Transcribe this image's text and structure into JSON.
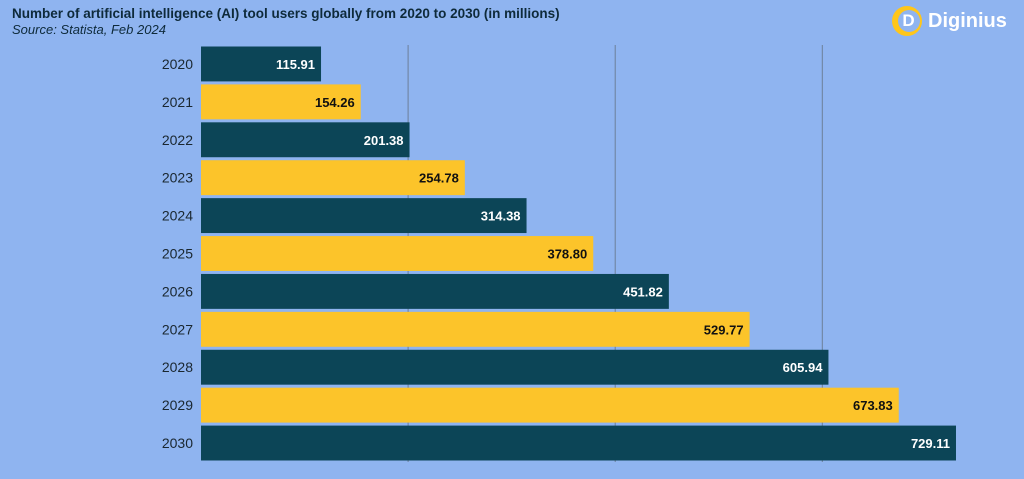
{
  "header": {
    "title": "Number of artificial intelligence (AI) tool users globally from 2020 to 2030 (in millions)",
    "subtitle": "Source: Statista, Feb 2024"
  },
  "logo": {
    "letter": "D",
    "name": "Diginius"
  },
  "colors": {
    "background": "#8fb4f0",
    "dark_bar": "#0c4557",
    "light_bar": "#fcc42a",
    "gridline": "#6c7f99"
  },
  "chart_data": {
    "type": "bar",
    "orientation": "horizontal",
    "title": "Number of artificial intelligence (AI) tool users globally from 2020 to 2030 (in millions)",
    "categories": [
      "2020",
      "2021",
      "2022",
      "2023",
      "2024",
      "2025",
      "2026",
      "2027",
      "2028",
      "2029",
      "2030"
    ],
    "values": [
      115.91,
      154.26,
      201.38,
      254.78,
      314.38,
      378.8,
      451.82,
      529.77,
      605.94,
      673.83,
      729.11
    ],
    "labels": [
      "115.91",
      "154.26",
      "201.38",
      "254.78",
      "314.38",
      "378.80",
      "451.82",
      "529.77",
      "605.94",
      "673.83",
      "729.11"
    ],
    "xlim": [
      0,
      800
    ],
    "gridlines_at": [
      200,
      400,
      600
    ],
    "xlabel": "",
    "ylabel": ""
  }
}
